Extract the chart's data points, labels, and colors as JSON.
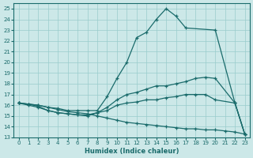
{
  "bg_color": "#cce8e8",
  "grid_color": "#99cccc",
  "line_color": "#1a6b6b",
  "xlabel": "Humidex (Indice chaleur)",
  "xlim": [
    -0.5,
    23.5
  ],
  "ylim": [
    13,
    25.5
  ],
  "xticks": [
    0,
    1,
    2,
    3,
    4,
    5,
    6,
    7,
    8,
    9,
    10,
    11,
    12,
    13,
    14,
    15,
    16,
    17,
    18,
    19,
    20,
    21,
    22,
    23
  ],
  "yticks": [
    13,
    14,
    15,
    16,
    17,
    18,
    19,
    20,
    21,
    22,
    23,
    24,
    25
  ],
  "line1_x": [
    0,
    1,
    2,
    3,
    4,
    5,
    6,
    7,
    8,
    9,
    10,
    11,
    12,
    13,
    14,
    15,
    16,
    17,
    20,
    22,
    23
  ],
  "line1_y": [
    16.2,
    16.1,
    16.0,
    15.8,
    15.7,
    15.5,
    15.5,
    15.5,
    15.5,
    16.8,
    18.5,
    20.0,
    22.3,
    22.8,
    24.0,
    25.0,
    24.3,
    23.2,
    23.0,
    16.2,
    13.3
  ],
  "line2_x": [
    0,
    1,
    2,
    3,
    4,
    5,
    6,
    7,
    8,
    9,
    10,
    11,
    12,
    13,
    14,
    15,
    16,
    17,
    18,
    19,
    20,
    22,
    23
  ],
  "line2_y": [
    16.2,
    16.1,
    15.9,
    15.5,
    15.3,
    15.2,
    15.1,
    15.1,
    15.3,
    15.8,
    16.5,
    17.0,
    17.2,
    17.5,
    17.8,
    17.8,
    18.0,
    18.2,
    18.5,
    18.6,
    18.5,
    16.2,
    13.3
  ],
  "line3_x": [
    0,
    1,
    2,
    3,
    4,
    5,
    6,
    7,
    8,
    9,
    10,
    11,
    12,
    13,
    14,
    15,
    16,
    17,
    18,
    19,
    20,
    22,
    23
  ],
  "line3_y": [
    16.2,
    16.0,
    15.8,
    15.5,
    15.3,
    15.2,
    15.1,
    15.0,
    15.3,
    15.5,
    16.0,
    16.2,
    16.3,
    16.5,
    16.5,
    16.7,
    16.8,
    17.0,
    17.0,
    17.0,
    16.5,
    16.2,
    13.3
  ],
  "line4_x": [
    0,
    1,
    2,
    3,
    4,
    5,
    6,
    7,
    8,
    9,
    10,
    11,
    12,
    13,
    14,
    15,
    16,
    17,
    18,
    19,
    20,
    21,
    22,
    23
  ],
  "line4_y": [
    16.2,
    16.1,
    16.0,
    15.8,
    15.6,
    15.4,
    15.3,
    15.2,
    15.0,
    14.8,
    14.6,
    14.4,
    14.3,
    14.2,
    14.1,
    14.0,
    13.9,
    13.8,
    13.8,
    13.7,
    13.7,
    13.6,
    13.5,
    13.3
  ]
}
